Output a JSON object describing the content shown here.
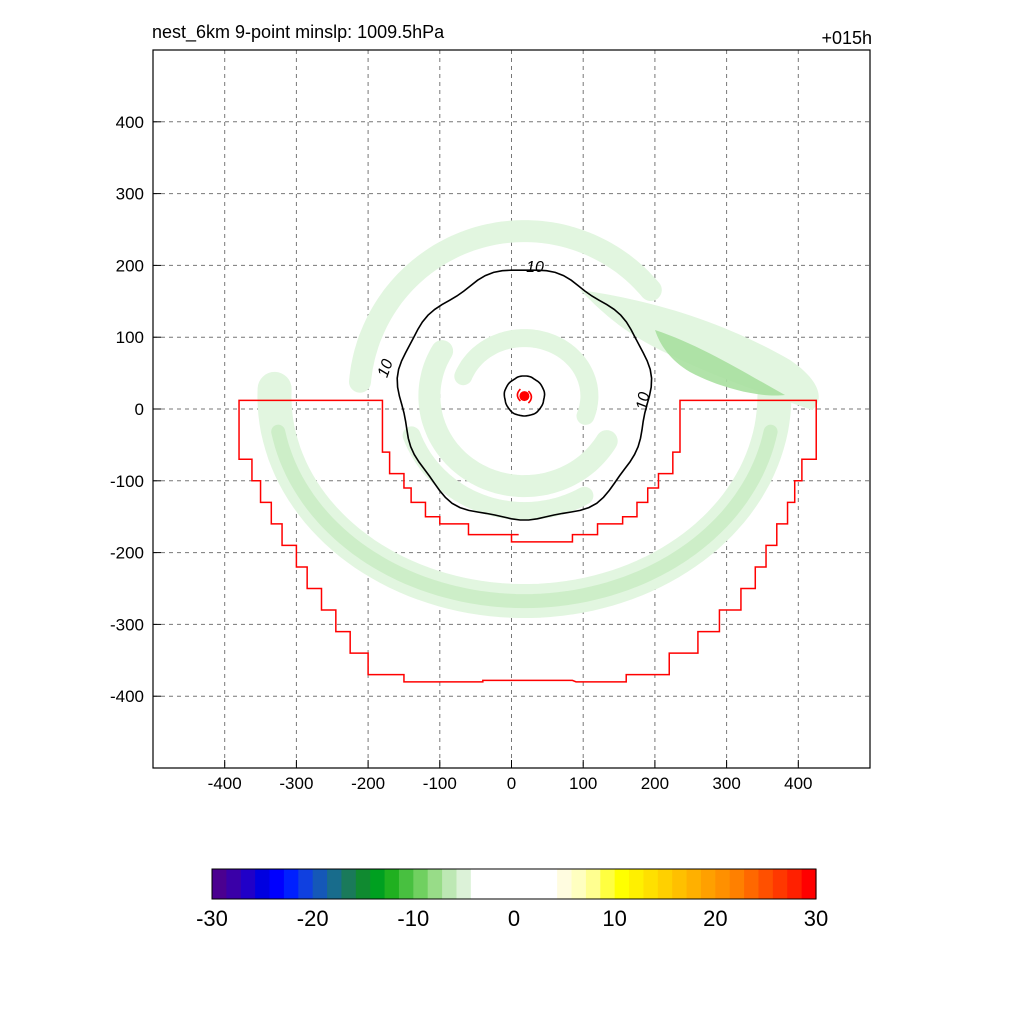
{
  "title": "nest_6km  9-point minslp: 1009.5hPa",
  "time_label": "+015h",
  "chart_data": {
    "type": "contour",
    "xlim": [
      -500,
      500
    ],
    "ylim": [
      -500,
      500
    ],
    "grid": true,
    "x_ticks": [
      "-400",
      "-300",
      "-200",
      "-100",
      "0",
      "100",
      "200",
      "300",
      "400"
    ],
    "y_ticks": [
      "400",
      "300",
      "200",
      "100",
      "0",
      "-100",
      "-200",
      "-300",
      "-400"
    ],
    "contour_label": "10",
    "center": {
      "x": 18,
      "y": 18
    },
    "colorbar": {
      "min": -30,
      "max": 30,
      "tick_labels": [
        "-30",
        "-20",
        "-10",
        "0",
        "10",
        "20",
        "30"
      ]
    },
    "colors": {
      "shade_light": "#e2f6e0",
      "shade_mid": "#cdeec8",
      "shade_dark": "#a8e0a0",
      "contour": "#000000",
      "boundary": "#ff0000",
      "marker": "#ff0000"
    }
  }
}
